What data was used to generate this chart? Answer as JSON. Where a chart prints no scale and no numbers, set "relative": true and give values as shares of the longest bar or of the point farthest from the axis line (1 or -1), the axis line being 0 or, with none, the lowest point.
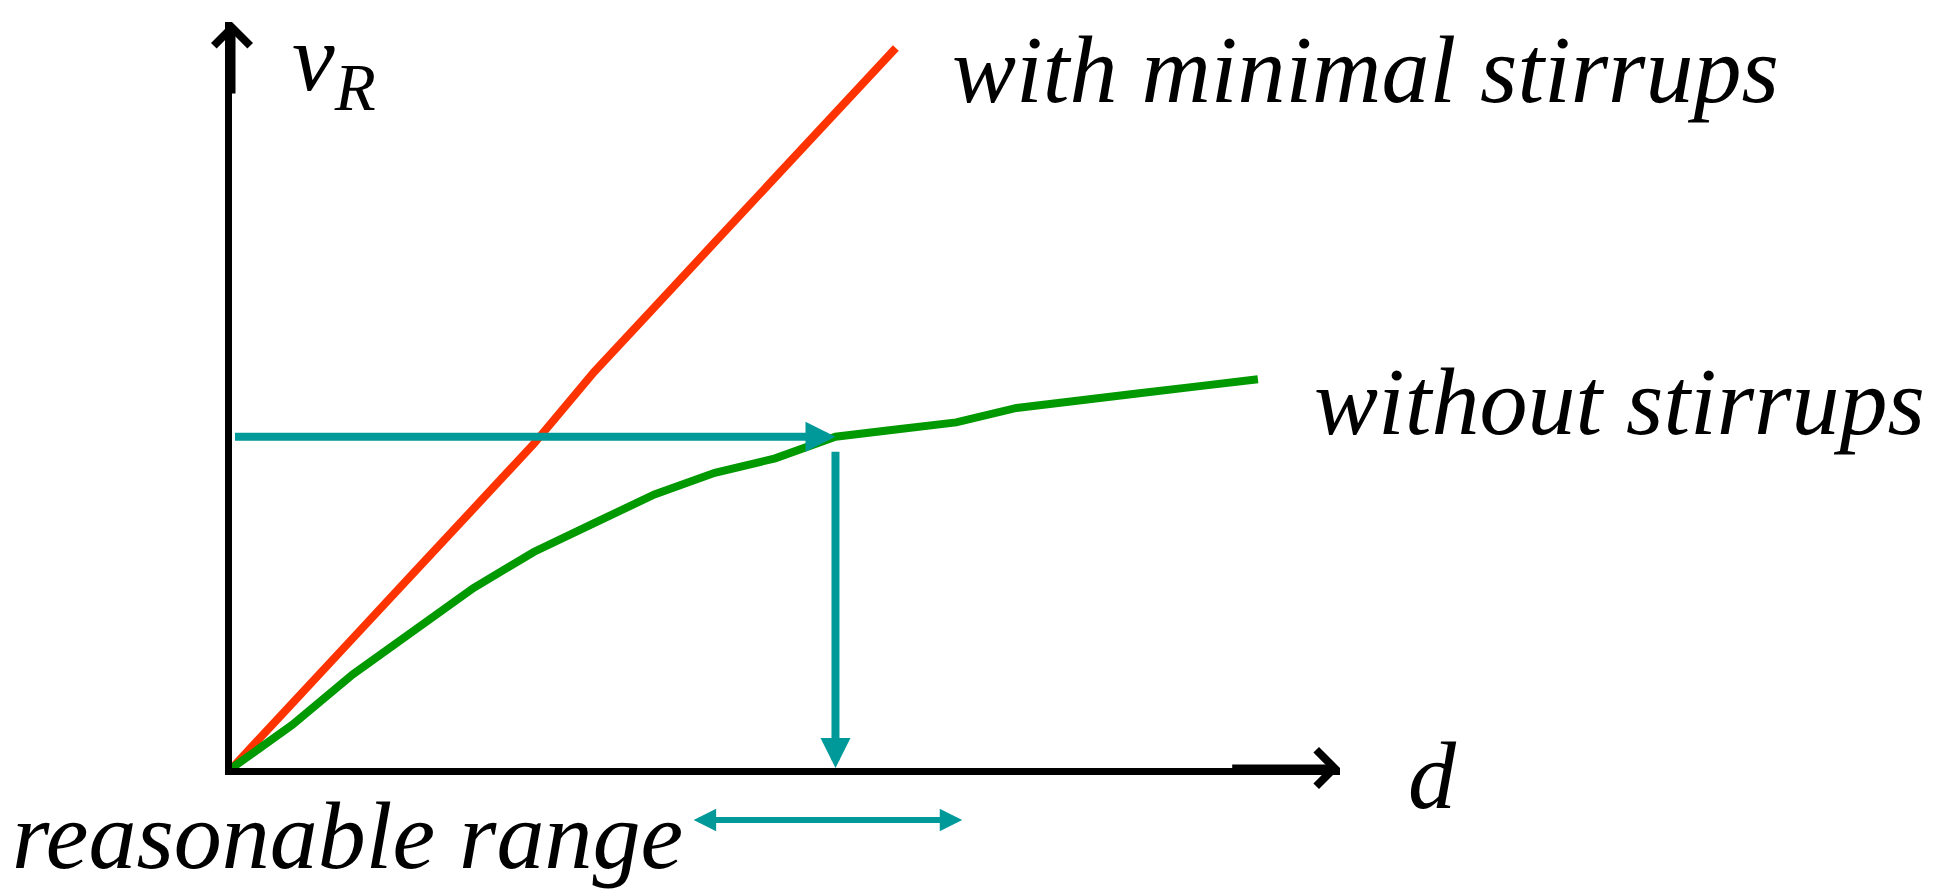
{
  "chart_data": {
    "type": "line",
    "relative": true,
    "xlabel": "d",
    "ylabel": "v$_{R}$",
    "categories": [
      null,
      null,
      null,
      null,
      null,
      null,
      null,
      null,
      null,
      null,
      null,
      null,
      null,
      null,
      null,
      null,
      null,
      null
    ],
    "series": [
      {
        "name": "with minimal stirrups",
        "color": "#ff3300",
        "values": [
          0,
          0.09,
          0.18,
          0.27,
          0.36,
          0.45,
          0.55,
          0.64,
          0.73,
          0.82,
          0.91,
          1,
          null,
          null,
          null,
          null,
          null,
          null
        ]
      },
      {
        "name": "without stirrups",
        "color": "#009900",
        "values": [
          0,
          0.06,
          0.13,
          0.19,
          0.25,
          0.3,
          0.34,
          0.38,
          0.41,
          0.43,
          0.46,
          0.47,
          0.48,
          0.5,
          0.51,
          0.52,
          0.53,
          0.54
        ]
      }
    ],
    "ref_lines": [
      {
        "axis": "y",
        "value": 0.46,
        "color": "#009999"
      }
    ],
    "annotations": [
      "reasonable range"
    ],
    "legend": false
  }
}
